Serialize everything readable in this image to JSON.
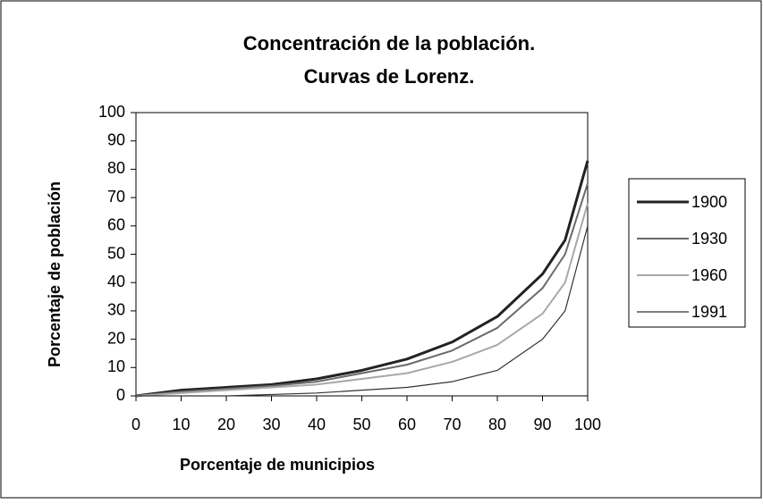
{
  "chart_data": {
    "type": "line",
    "title": "Concentración de la población.",
    "subtitle": "Curvas de Lorenz.",
    "x_label": "Porcentaje de municipios",
    "y_label": "Porcentaje de población",
    "x": [
      0,
      10,
      20,
      30,
      40,
      50,
      60,
      70,
      80,
      90,
      95,
      100
    ],
    "series": [
      {
        "name": "1900",
        "color": "#222222",
        "values": [
          0,
          2,
          3,
          4,
          6,
          9,
          13,
          19,
          28,
          43,
          55,
          83
        ]
      },
      {
        "name": "1930",
        "color": "#6a6a6a",
        "values": [
          0,
          1.5,
          2.5,
          3.5,
          5,
          8,
          11,
          16,
          24,
          38,
          50,
          75
        ]
      },
      {
        "name": "1960",
        "color": "#a8a8a8",
        "values": [
          0,
          1,
          2,
          3,
          4,
          6,
          8,
          12,
          18,
          29,
          40,
          68
        ]
      },
      {
        "name": "1991",
        "color": "#333333",
        "values": [
          0,
          0,
          0,
          0.5,
          1,
          2,
          3,
          5,
          9,
          20,
          30,
          60
        ]
      }
    ],
    "xlim": [
      0,
      100
    ],
    "ylim": [
      0,
      100
    ],
    "xticks": [
      0,
      10,
      20,
      30,
      40,
      50,
      60,
      70,
      80,
      90,
      100
    ],
    "yticks": [
      0,
      10,
      20,
      30,
      40,
      50,
      60,
      70,
      80,
      90,
      100
    ],
    "legend": "right"
  }
}
